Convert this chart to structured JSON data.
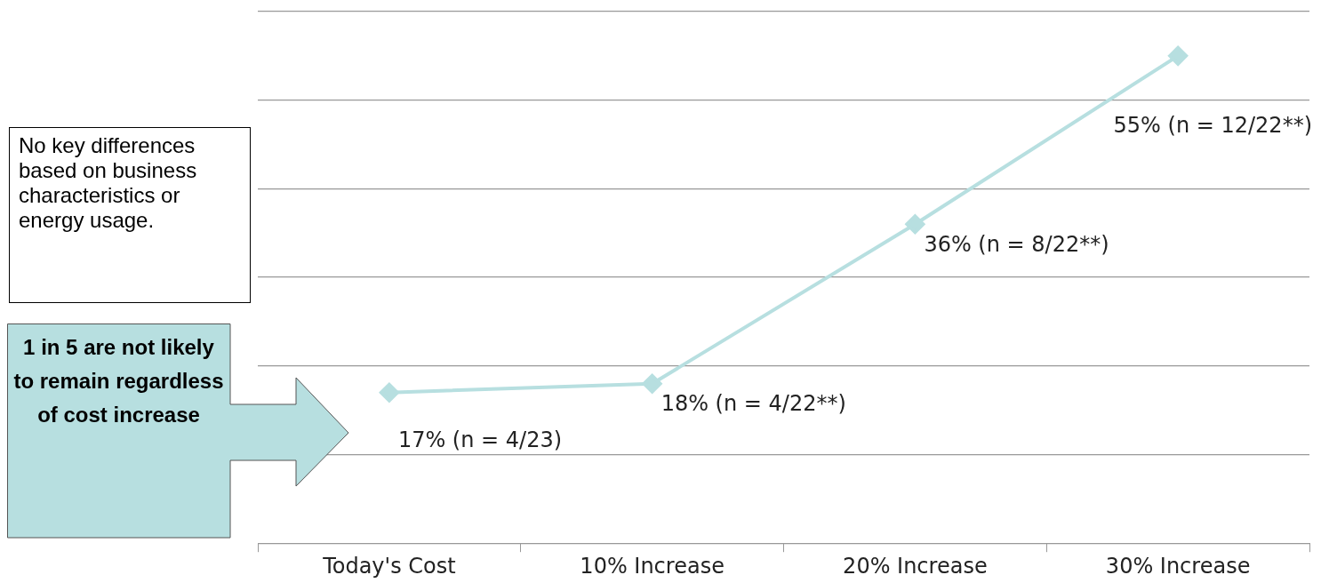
{
  "chart_data": {
    "type": "line",
    "categories": [
      "Today's Cost",
      "10% Increase",
      "20% Increase",
      "30% Increase"
    ],
    "series": [
      {
        "color": "#b7dfe0",
        "values": [
          17,
          18,
          36,
          55
        ],
        "value_labels": [
          "17% (n = 4/23)",
          "18% (n = 4/22**)",
          "36% (n = 8/22**)",
          "55% (n = 12/22**)"
        ]
      }
    ],
    "ylim": [
      0,
      60
    ],
    "yticks": [
      {
        "value": 0,
        "label": null
      },
      {
        "value": 10,
        "label": null
      },
      {
        "value": 20,
        "label": null
      },
      {
        "value": 30,
        "label": null
      },
      {
        "value": 40,
        "label": null
      },
      {
        "value": 50,
        "label": null
      },
      {
        "value": 60,
        "label": null
      }
    ],
    "tick_labels": "x",
    "grid": "y",
    "marker": "diamond",
    "legend": false,
    "annotations": [
      "No key differences based on business characteristics or energy usage.",
      "1 in 5 are not likely to remain regardless of cost increase"
    ]
  }
}
